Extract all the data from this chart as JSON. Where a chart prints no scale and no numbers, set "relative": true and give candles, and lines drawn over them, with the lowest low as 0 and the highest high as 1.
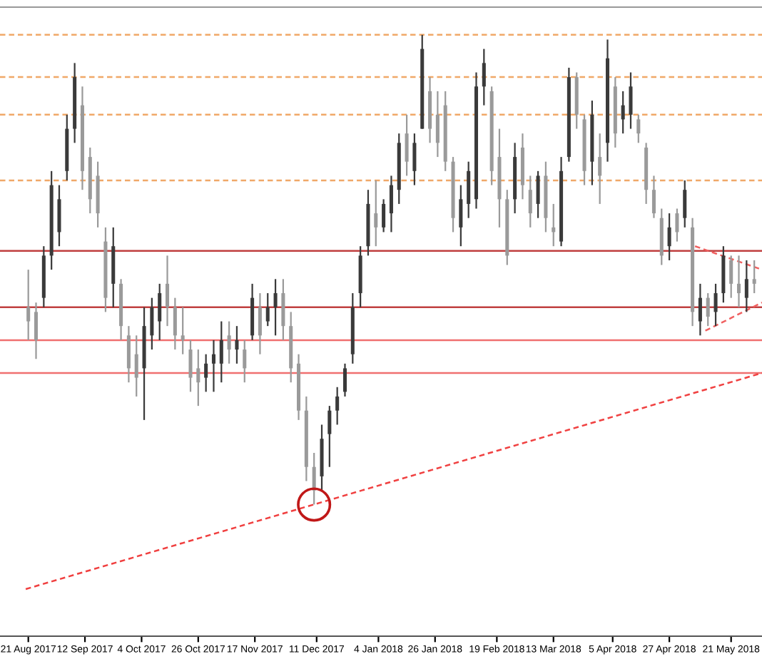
{
  "chart_data": {
    "type": "candlestick",
    "relative": true,
    "x": [
      "2017-08-21",
      "2017-08-24",
      "2017-08-27",
      "2017-08-30",
      "2017-09-02",
      "2017-09-05",
      "2017-09-08",
      "2017-09-11",
      "2017-09-14",
      "2017-09-17",
      "2017-09-20",
      "2017-09-23",
      "2017-09-26",
      "2017-09-29",
      "2017-10-02",
      "2017-10-05",
      "2017-10-08",
      "2017-10-11",
      "2017-10-14",
      "2017-10-17",
      "2017-10-20",
      "2017-10-23",
      "2017-10-26",
      "2017-10-29",
      "2017-11-01",
      "2017-11-04",
      "2017-11-07",
      "2017-11-10",
      "2017-11-13",
      "2017-11-16",
      "2017-11-19",
      "2017-11-22",
      "2017-11-25",
      "2017-11-28",
      "2017-12-01",
      "2017-12-04",
      "2017-12-07",
      "2017-12-10",
      "2017-12-13",
      "2017-12-16",
      "2017-12-19",
      "2017-12-22",
      "2017-12-25",
      "2017-12-28",
      "2017-12-31",
      "2018-01-03",
      "2018-01-06",
      "2018-01-09",
      "2018-01-12",
      "2018-01-15",
      "2018-01-18",
      "2018-01-21",
      "2018-01-24",
      "2018-01-27",
      "2018-01-30",
      "2018-02-02",
      "2018-02-05",
      "2018-02-08",
      "2018-02-11",
      "2018-02-14",
      "2018-02-17",
      "2018-02-20",
      "2018-02-23",
      "2018-02-26",
      "2018-03-01",
      "2018-03-04",
      "2018-03-07",
      "2018-03-10",
      "2018-03-13",
      "2018-03-16",
      "2018-03-19",
      "2018-03-22",
      "2018-03-25",
      "2018-03-28",
      "2018-03-31",
      "2018-04-03",
      "2018-04-06",
      "2018-04-09",
      "2018-04-12",
      "2018-04-15",
      "2018-04-18",
      "2018-04-21",
      "2018-04-24",
      "2018-04-27",
      "2018-04-30",
      "2018-05-03",
      "2018-05-06",
      "2018-05-09",
      "2018-05-12",
      "2018-05-15",
      "2018-05-18",
      "2018-05-21",
      "2018-05-24",
      "2018-05-27",
      "2018-05-30"
    ],
    "ohlc": [
      [
        0.42,
        0.5,
        0.35,
        0.39
      ],
      [
        0.41,
        0.43,
        0.31,
        0.35
      ],
      [
        0.44,
        0.55,
        0.42,
        0.53
      ],
      [
        0.53,
        0.71,
        0.5,
        0.68
      ],
      [
        0.58,
        0.68,
        0.55,
        0.65
      ],
      [
        0.71,
        0.83,
        0.69,
        0.8
      ],
      [
        0.8,
        0.94,
        0.77,
        0.91
      ],
      [
        0.85,
        0.89,
        0.67,
        0.71
      ],
      [
        0.74,
        0.76,
        0.62,
        0.65
      ],
      [
        0.7,
        0.73,
        0.59,
        0.62
      ],
      [
        0.56,
        0.59,
        0.41,
        0.44
      ],
      [
        0.47,
        0.59,
        0.42,
        0.55
      ],
      [
        0.47,
        0.48,
        0.35,
        0.38
      ],
      [
        0.36,
        0.38,
        0.26,
        0.29
      ],
      [
        0.32,
        0.36,
        0.23,
        0.27
      ],
      [
        0.29,
        0.42,
        0.18,
        0.38
      ],
      [
        0.36,
        0.44,
        0.33,
        0.42
      ],
      [
        0.39,
        0.47,
        0.35,
        0.45
      ],
      [
        0.47,
        0.53,
        0.38,
        0.42
      ],
      [
        0.42,
        0.44,
        0.33,
        0.36
      ],
      [
        0.36,
        0.42,
        0.32,
        0.35
      ],
      [
        0.33,
        0.35,
        0.24,
        0.27
      ],
      [
        0.29,
        0.33,
        0.21,
        0.26
      ],
      [
        0.27,
        0.32,
        0.24,
        0.3
      ],
      [
        0.3,
        0.35,
        0.24,
        0.32
      ],
      [
        0.3,
        0.39,
        0.26,
        0.35
      ],
      [
        0.36,
        0.39,
        0.3,
        0.33
      ],
      [
        0.33,
        0.38,
        0.3,
        0.35
      ],
      [
        0.33,
        0.35,
        0.26,
        0.29
      ],
      [
        0.36,
        0.47,
        0.35,
        0.44
      ],
      [
        0.42,
        0.45,
        0.32,
        0.36
      ],
      [
        0.39,
        0.45,
        0.38,
        0.42
      ],
      [
        0.42,
        0.48,
        0.36,
        0.45
      ],
      [
        0.45,
        0.48,
        0.35,
        0.38
      ],
      [
        0.38,
        0.41,
        0.26,
        0.29
      ],
      [
        0.3,
        0.32,
        0.18,
        0.2
      ],
      [
        0.2,
        0.23,
        0.05,
        0.08
      ],
      [
        0.08,
        0.11,
        0.0,
        0.03
      ],
      [
        0.06,
        0.17,
        0.03,
        0.14
      ],
      [
        0.15,
        0.21,
        0.08,
        0.2
      ],
      [
        0.2,
        0.25,
        0.17,
        0.23
      ],
      [
        0.24,
        0.3,
        0.23,
        0.29
      ],
      [
        0.32,
        0.45,
        0.3,
        0.42
      ],
      [
        0.45,
        0.55,
        0.42,
        0.53
      ],
      [
        0.55,
        0.67,
        0.53,
        0.64
      ],
      [
        0.62,
        0.69,
        0.55,
        0.59
      ],
      [
        0.59,
        0.65,
        0.58,
        0.64
      ],
      [
        0.62,
        0.7,
        0.58,
        0.68
      ],
      [
        0.67,
        0.79,
        0.64,
        0.77
      ],
      [
        0.79,
        0.83,
        0.7,
        0.73
      ],
      [
        0.71,
        0.79,
        0.68,
        0.77
      ],
      [
        0.8,
        1.0,
        0.8,
        0.97
      ],
      [
        0.88,
        0.91,
        0.77,
        0.8
      ],
      [
        0.83,
        0.88,
        0.74,
        0.77
      ],
      [
        0.85,
        0.88,
        0.71,
        0.73
      ],
      [
        0.73,
        0.74,
        0.58,
        0.61
      ],
      [
        0.59,
        0.68,
        0.55,
        0.65
      ],
      [
        0.64,
        0.73,
        0.61,
        0.71
      ],
      [
        0.65,
        0.92,
        0.63,
        0.89
      ],
      [
        0.89,
        0.97,
        0.85,
        0.94
      ],
      [
        0.88,
        0.89,
        0.68,
        0.71
      ],
      [
        0.74,
        0.8,
        0.59,
        0.65
      ],
      [
        0.65,
        0.67,
        0.51,
        0.53
      ],
      [
        0.65,
        0.77,
        0.62,
        0.74
      ],
      [
        0.76,
        0.79,
        0.65,
        0.68
      ],
      [
        0.67,
        0.7,
        0.59,
        0.62
      ],
      [
        0.64,
        0.71,
        0.61,
        0.7
      ],
      [
        0.7,
        0.73,
        0.58,
        0.61
      ],
      [
        0.59,
        0.64,
        0.55,
        0.58
      ],
      [
        0.56,
        0.74,
        0.55,
        0.71
      ],
      [
        0.74,
        0.93,
        0.73,
        0.91
      ],
      [
        0.91,
        0.92,
        0.8,
        0.83
      ],
      [
        0.82,
        0.83,
        0.68,
        0.71
      ],
      [
        0.73,
        0.86,
        0.68,
        0.83
      ],
      [
        0.74,
        0.79,
        0.64,
        0.7
      ],
      [
        0.77,
        0.99,
        0.73,
        0.95
      ],
      [
        0.89,
        0.91,
        0.76,
        0.79
      ],
      [
        0.82,
        0.88,
        0.79,
        0.85
      ],
      [
        0.83,
        0.92,
        0.8,
        0.89
      ],
      [
        0.82,
        0.83,
        0.77,
        0.79
      ],
      [
        0.76,
        0.77,
        0.64,
        0.67
      ],
      [
        0.67,
        0.7,
        0.61,
        0.62
      ],
      [
        0.61,
        0.63,
        0.51,
        0.53
      ],
      [
        0.55,
        0.62,
        0.52,
        0.59
      ],
      [
        0.62,
        0.63,
        0.56,
        0.58
      ],
      [
        0.61,
        0.69,
        0.59,
        0.67
      ],
      [
        0.59,
        0.61,
        0.38,
        0.41
      ],
      [
        0.39,
        0.47,
        0.36,
        0.44
      ],
      [
        0.44,
        0.45,
        0.38,
        0.4
      ],
      [
        0.41,
        0.47,
        0.38,
        0.45
      ],
      [
        0.45,
        0.55,
        0.43,
        0.53
      ],
      [
        0.52,
        0.53,
        0.44,
        0.47
      ],
      [
        0.47,
        0.53,
        0.42,
        0.45
      ],
      [
        0.44,
        0.52,
        0.41,
        0.48
      ],
      [
        0.48,
        0.52,
        0.45,
        0.47
      ]
    ],
    "series": [
      {
        "type": "line",
        "color": "#f04040",
        "line_style": "dashed",
        "x": [
          "2017-08-20",
          "2018-06-02"
        ],
        "values": [
          -0.18,
          0.28
        ]
      },
      {
        "type": "line",
        "color": "#f06060",
        "line_style": "dashed",
        "x": [
          "2018-05-07",
          "2018-06-02"
        ],
        "values": [
          0.55,
          0.5
        ]
      },
      {
        "type": "line",
        "color": "#f06060",
        "line_style": "dashed",
        "x": [
          "2018-05-11",
          "2018-06-02"
        ],
        "values": [
          0.37,
          0.43
        ]
      }
    ],
    "ref_lines": [
      {
        "axis": "y",
        "value": 1.0,
        "color": "#f0a868",
        "line_style": "dashed"
      },
      {
        "axis": "y",
        "value": 0.91,
        "color": "#f0a868",
        "line_style": "dashed"
      },
      {
        "axis": "y",
        "value": 0.83,
        "color": "#f0a868",
        "line_style": "dashed"
      },
      {
        "axis": "y",
        "value": 0.69,
        "color": "#f0a868",
        "line_style": "dashed"
      },
      {
        "axis": "y",
        "value": 0.54,
        "color": "#c04040",
        "line_style": "solid"
      },
      {
        "axis": "y",
        "value": 0.42,
        "color": "#c04040",
        "line_style": "solid"
      },
      {
        "axis": "y",
        "value": 0.35,
        "color": "#f07070",
        "line_style": "solid"
      },
      {
        "axis": "y",
        "value": 0.28,
        "color": "#f07070",
        "line_style": "solid"
      }
    ],
    "xlim": [
      "2017-08-10",
      "2018-06-02"
    ],
    "xticks": [
      {
        "value": "2017-08-21",
        "label": "21 Aug 2017"
      },
      {
        "value": "2017-09-12",
        "label": "12 Sep 2017"
      },
      {
        "value": "2017-10-04",
        "label": "4 Oct 2017"
      },
      {
        "value": "2017-10-26",
        "label": "26 Oct 2017"
      },
      {
        "value": "2017-11-17",
        "label": "17 Nov 2017"
      },
      {
        "value": "2017-12-11",
        "label": "11 Dec 2017"
      },
      {
        "value": "2018-01-04",
        "label": "4 Jan 2018"
      },
      {
        "value": "2018-01-26",
        "label": "26 Jan 2018"
      },
      {
        "value": "2018-02-19",
        "label": "19 Feb 2018"
      },
      {
        "value": "2018-03-13",
        "label": "13 Mar 2018"
      },
      {
        "value": "2018-04-05",
        "label": "5 Apr 2018"
      },
      {
        "value": "2018-04-27",
        "label": "27 Apr 2018"
      },
      {
        "value": "2018-05-21",
        "label": "21 May 2018"
      }
    ],
    "tick_labels": "x",
    "grid": false,
    "legend": false
  }
}
